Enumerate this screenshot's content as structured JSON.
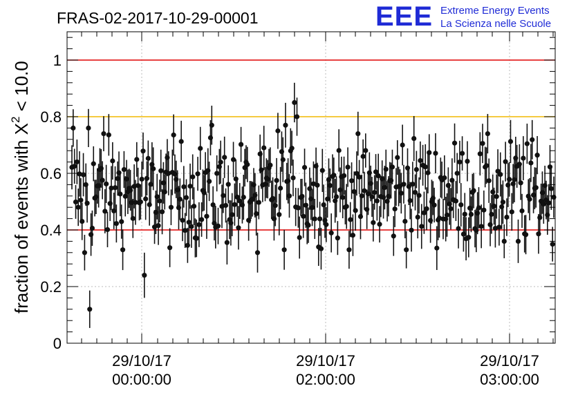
{
  "chart_data": {
    "type": "scatter",
    "title": "FRAS-02-2017-10-29-00001",
    "ylabel": "fraction of events with X",
    "ylabel_sup": "2",
    "ylabel_tail": " < 10.0",
    "xlabel": "",
    "ylim": [
      0,
      1.1
    ],
    "yticks": [
      "0",
      "0.2",
      "0.4",
      "0.6",
      "0.8",
      "1"
    ],
    "ytick_values": [
      0,
      0.2,
      0.4,
      0.6,
      0.8,
      1.0
    ],
    "xtick_labels": [
      {
        "date": "29/10/17",
        "time": "00:00:00"
      },
      {
        "date": "29/10/17",
        "time": "02:00:00"
      },
      {
        "date": "29/10/17",
        "time": "03:00:00"
      }
    ],
    "reference_lines": [
      {
        "y": 1.0,
        "color": "#e00000"
      },
      {
        "y": 0.8,
        "color": "#f2b800"
      },
      {
        "y": 0.4,
        "color": "#e00000"
      }
    ],
    "grid": true,
    "n_points": 380,
    "error_bar_half_width": 0.07,
    "highlighted_points": [
      {
        "index": 1,
        "y": 0.76
      },
      {
        "index": 10,
        "y": 0.32
      },
      {
        "index": 13,
        "y": 0.76
      },
      {
        "index": 14,
        "y": 0.12
      },
      {
        "index": 25,
        "y": 0.74
      },
      {
        "index": 57,
        "y": 0.24
      },
      {
        "index": 110,
        "y": 0.77
      },
      {
        "index": 146,
        "y": 0.32
      },
      {
        "index": 168,
        "y": 0.77
      },
      {
        "index": 168,
        "y": 0.77
      },
      {
        "index": 162,
        "y": 0.75
      },
      {
        "index": 175,
        "y": 0.85
      },
      {
        "index": 177,
        "y": 0.8
      },
      {
        "index": 260,
        "y": 0.7
      },
      {
        "index": 340,
        "y": 0.36
      },
      {
        "index": 351,
        "y": 0.36
      }
    ],
    "series_color": "#111111",
    "distribution": {
      "mean": 0.53,
      "spread": 0.09
    }
  },
  "logo": {
    "mark": "EEE",
    "line1": "Extreme Energy Events",
    "line2": "La Scienza nelle Scuole",
    "color": "#1f2bd6"
  }
}
